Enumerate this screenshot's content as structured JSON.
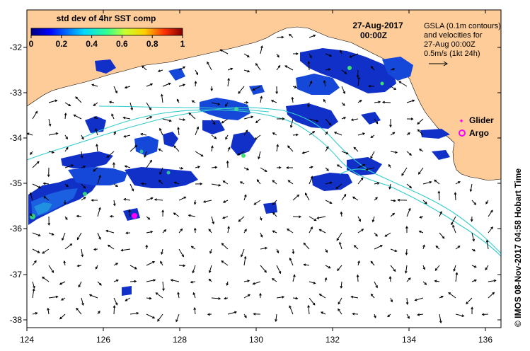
{
  "colorbar": {
    "title": "std dev of 4hr SST comp",
    "ticks": [
      "0",
      "0.2",
      "0.4",
      "0.6",
      "0.8",
      "1"
    ]
  },
  "date": {
    "line1": "27-Aug-2017",
    "line2": "00:00Z"
  },
  "info": {
    "line1": "GSLA (0.1m contours)",
    "line2": "and velocities for",
    "line3": "27-Aug 00:00Z",
    "line4": "0.5m/s (1kt 24h)"
  },
  "legend": {
    "glider": "Glider",
    "argo": "Argo"
  },
  "axes": {
    "x_ticks": [
      "124",
      "126",
      "128",
      "130",
      "132",
      "134",
      "136"
    ],
    "y_ticks": [
      "-32",
      "-33",
      "-34",
      "-35",
      "-36",
      "-37",
      "-38"
    ]
  },
  "credit": "© IMOS 08-Nov-2017 04:58 Hobart Time",
  "colors": {
    "land": "#fdcc99",
    "contour": "#33cccc",
    "argo": "#ff00ff",
    "glider": "#ff00ff"
  },
  "argo_float": {
    "lon": 126.8,
    "lat": -35.7
  }
}
